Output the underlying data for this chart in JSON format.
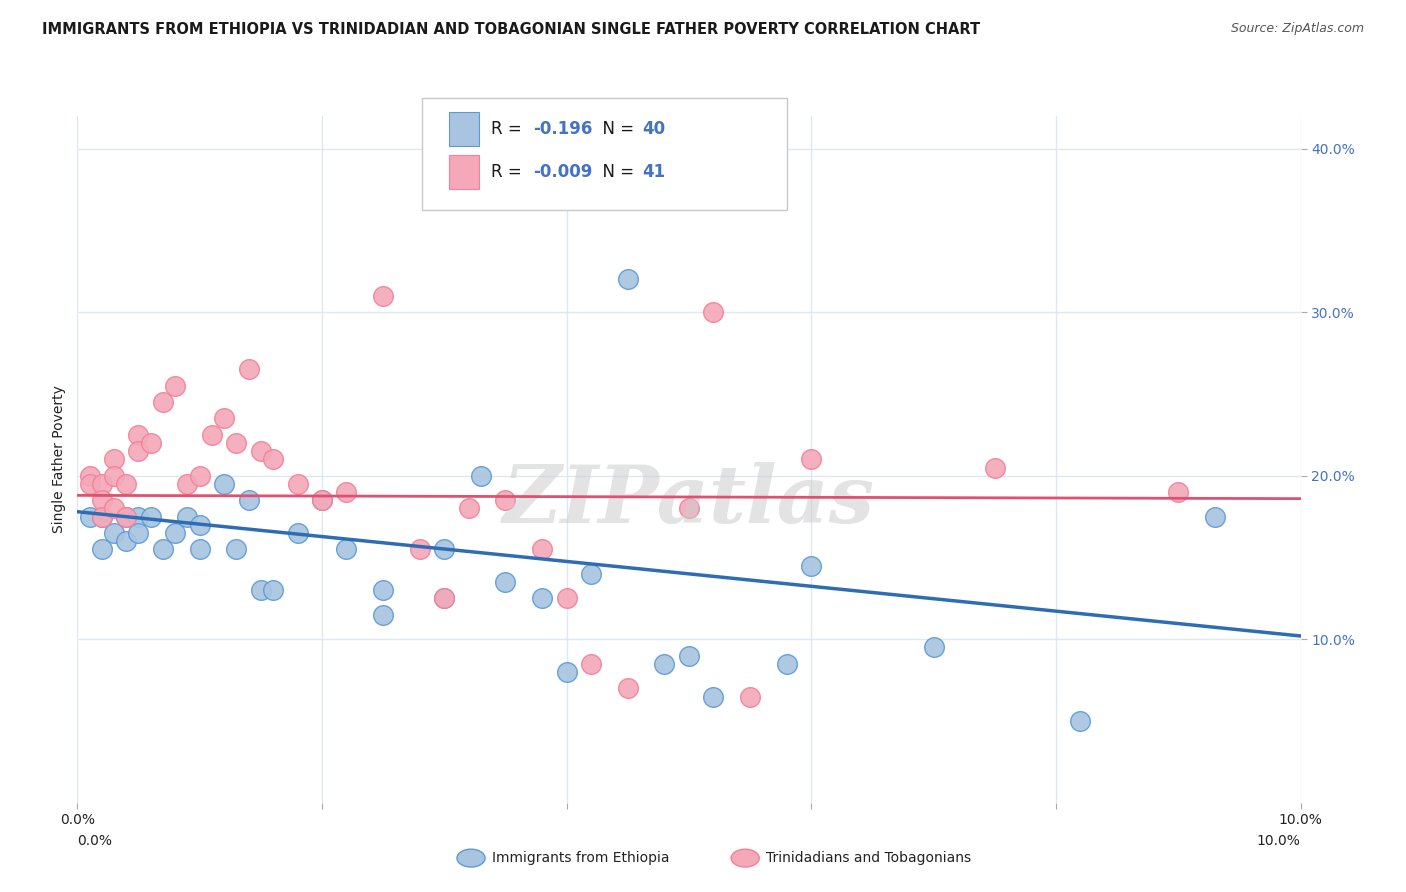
{
  "title": "IMMIGRANTS FROM ETHIOPIA VS TRINIDADIAN AND TOBAGONIAN SINGLE FATHER POVERTY CORRELATION CHART",
  "source": "Source: ZipAtlas.com",
  "ylabel": "Single Father Poverty",
  "yaxis_ticks": [
    0.1,
    0.2,
    0.3,
    0.4
  ],
  "yaxis_labels": [
    "10.0%",
    "20.0%",
    "30.0%",
    "40.0%"
  ],
  "xmin": 0.0,
  "xmax": 0.1,
  "ymin": 0.0,
  "ymax": 0.42,
  "legend_label1": "Immigrants from Ethiopia",
  "legend_label2": "Trinidadians and Tobagonians",
  "blue_color": "#a8c4e0",
  "pink_color": "#f4a8b8",
  "blue_edge_color": "#5b9bd5",
  "pink_edge_color": "#f48099",
  "blue_line_color": "#2e6db4",
  "pink_line_color": "#e05070",
  "title_fontsize": 10.5,
  "source_fontsize": 9,
  "blue_r": "-0.196",
  "blue_n": "40",
  "pink_r": "-0.009",
  "pink_n": "41",
  "blue_points_x": [
    0.001,
    0.002,
    0.002,
    0.003,
    0.004,
    0.004,
    0.005,
    0.005,
    0.006,
    0.007,
    0.008,
    0.009,
    0.01,
    0.01,
    0.012,
    0.013,
    0.014,
    0.015,
    0.016,
    0.018,
    0.02,
    0.022,
    0.025,
    0.025,
    0.03,
    0.03,
    0.033,
    0.035,
    0.038,
    0.04,
    0.042,
    0.045,
    0.048,
    0.05,
    0.052,
    0.058,
    0.06,
    0.07,
    0.082,
    0.093
  ],
  "blue_points_y": [
    0.175,
    0.175,
    0.155,
    0.165,
    0.16,
    0.175,
    0.175,
    0.165,
    0.175,
    0.155,
    0.165,
    0.175,
    0.155,
    0.17,
    0.195,
    0.155,
    0.185,
    0.13,
    0.13,
    0.165,
    0.185,
    0.155,
    0.115,
    0.13,
    0.155,
    0.125,
    0.2,
    0.135,
    0.125,
    0.08,
    0.14,
    0.32,
    0.085,
    0.09,
    0.065,
    0.085,
    0.145,
    0.095,
    0.05,
    0.175
  ],
  "pink_points_x": [
    0.001,
    0.001,
    0.002,
    0.002,
    0.002,
    0.003,
    0.003,
    0.003,
    0.004,
    0.004,
    0.005,
    0.005,
    0.006,
    0.007,
    0.008,
    0.009,
    0.01,
    0.011,
    0.012,
    0.013,
    0.014,
    0.015,
    0.016,
    0.018,
    0.02,
    0.022,
    0.025,
    0.028,
    0.03,
    0.032,
    0.035,
    0.038,
    0.04,
    0.042,
    0.045,
    0.05,
    0.052,
    0.055,
    0.06,
    0.075,
    0.09
  ],
  "pink_points_y": [
    0.2,
    0.195,
    0.195,
    0.185,
    0.175,
    0.21,
    0.2,
    0.18,
    0.195,
    0.175,
    0.225,
    0.215,
    0.22,
    0.245,
    0.255,
    0.195,
    0.2,
    0.225,
    0.235,
    0.22,
    0.265,
    0.215,
    0.21,
    0.195,
    0.185,
    0.19,
    0.31,
    0.155,
    0.125,
    0.18,
    0.185,
    0.155,
    0.125,
    0.085,
    0.07,
    0.18,
    0.3,
    0.065,
    0.21,
    0.205,
    0.19
  ],
  "blue_trend_y0": 0.178,
  "blue_trend_y1": 0.102,
  "pink_trend_y0": 0.188,
  "pink_trend_y1": 0.186,
  "watermark": "ZIPatlas",
  "background_color": "#ffffff",
  "grid_color": "#dde8f0",
  "accent_color": "#4472c4",
  "label_color": "#222222"
}
